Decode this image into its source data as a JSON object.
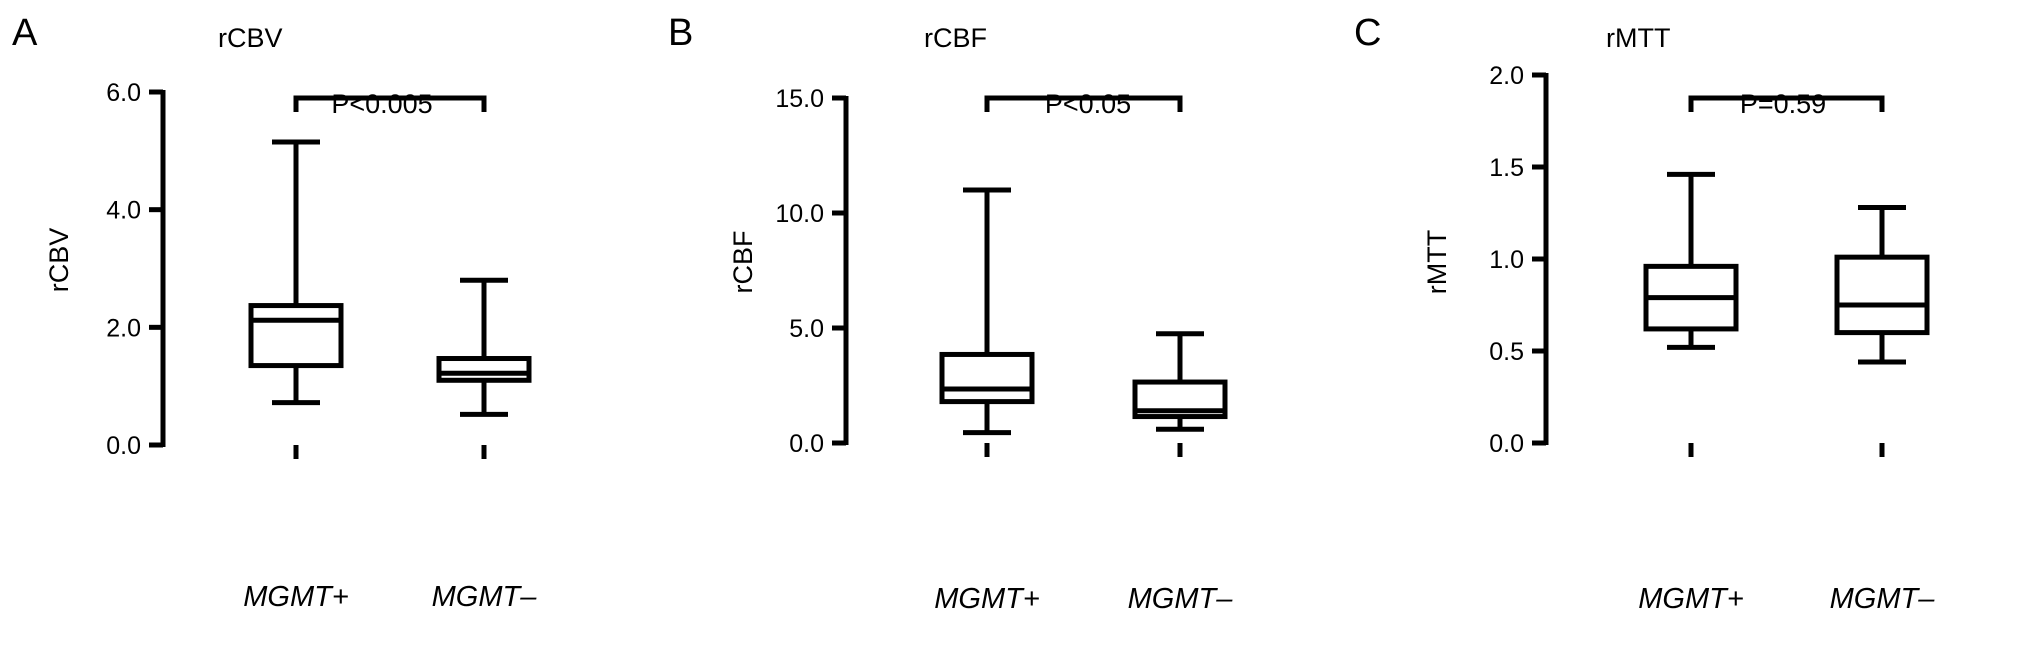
{
  "chart_data": [
    {
      "type": "box",
      "panel_letter": "A",
      "title": "rCBV",
      "ylabel": "rCBV",
      "ylim": [
        0,
        6
      ],
      "yticks": [
        0,
        2,
        4,
        6
      ],
      "ytick_labels": [
        "0.0",
        "2.0",
        "4.0",
        "6.0"
      ],
      "categories": [
        "MGMT+",
        "MGMT–"
      ],
      "boxes": [
        {
          "min": 0.72,
          "q1": 1.35,
          "median": 2.12,
          "q3": 2.37,
          "max": 5.15
        },
        {
          "min": 0.52,
          "q1": 1.1,
          "median": 1.22,
          "q3": 1.47,
          "max": 2.8
        }
      ],
      "significance": "P<0.005"
    },
    {
      "type": "box",
      "panel_letter": "B",
      "title": "rCBF",
      "ylabel": "rCBF",
      "ylim": [
        0,
        15
      ],
      "yticks": [
        0,
        5,
        10,
        15
      ],
      "ytick_labels": [
        "0.0",
        "5.0",
        "10.0",
        "15.0"
      ],
      "categories": [
        "MGMT+",
        "MGMT–"
      ],
      "boxes": [
        {
          "min": 0.45,
          "q1": 1.8,
          "median": 2.35,
          "q3": 3.85,
          "max": 11.0
        },
        {
          "min": 0.6,
          "q1": 1.15,
          "median": 1.4,
          "q3": 2.65,
          "max": 4.75
        }
      ],
      "significance": "P<0.05"
    },
    {
      "type": "box",
      "panel_letter": "C",
      "title": "rMTT",
      "ylabel": "rMTT",
      "ylim": [
        0,
        2
      ],
      "yticks": [
        0,
        0.5,
        1,
        1.5,
        2
      ],
      "ytick_labels": [
        "0.0",
        "0.5",
        "1.0",
        "1.5",
        "2.0"
      ],
      "categories": [
        "MGMT+",
        "MGMT–"
      ],
      "boxes": [
        {
          "min": 0.52,
          "q1": 0.62,
          "median": 0.79,
          "q3": 0.96,
          "max": 1.46
        },
        {
          "min": 0.44,
          "q1": 0.6,
          "median": 0.75,
          "q3": 1.01,
          "max": 1.28
        }
      ],
      "significance": "P=0.59"
    }
  ]
}
